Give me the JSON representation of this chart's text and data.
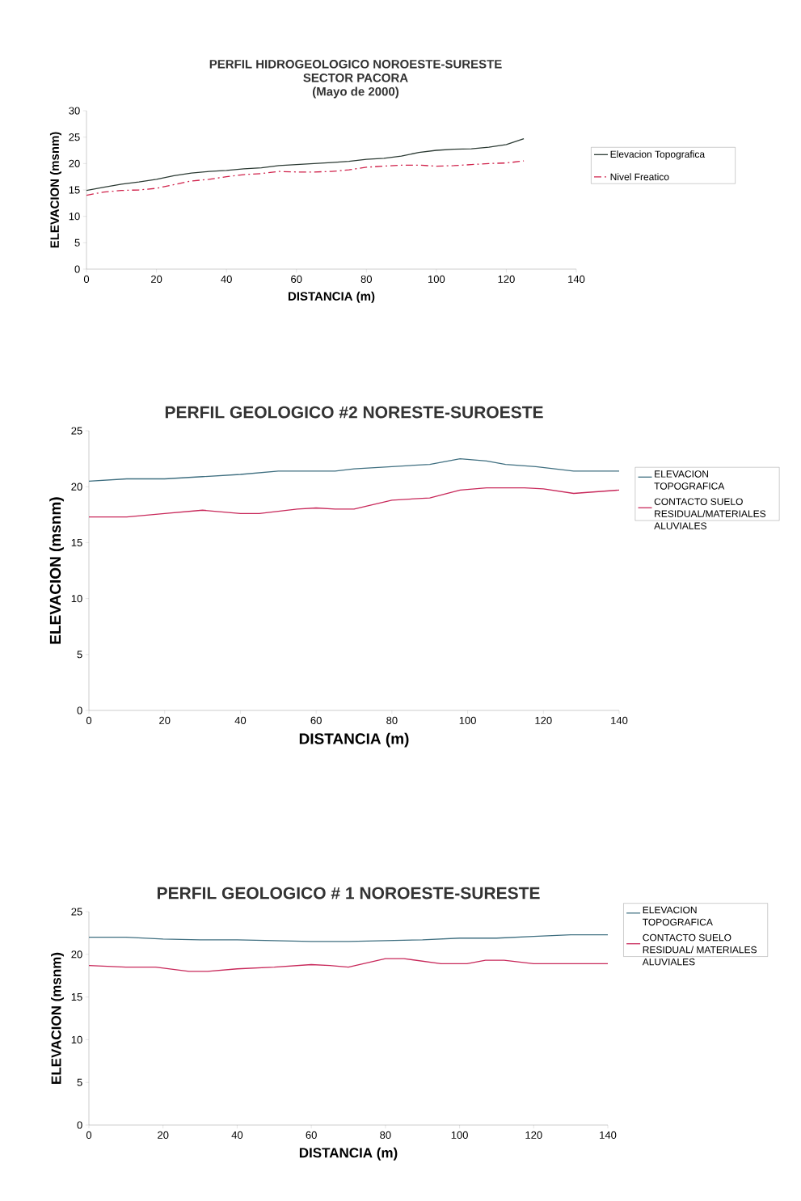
{
  "chart_data": [
    {
      "type": "line",
      "title": "PERFIL HIDROGEOLOGICO NOROESTE-SURESTE",
      "subtitle": "SECTOR PACORA",
      "annotations": [
        "(Mayo de 2000)"
      ],
      "xlabel": "DISTANCIA (m)",
      "ylabel": "ELEVACION (msnm)",
      "xlim": [
        0,
        140
      ],
      "xticks": [
        0,
        20,
        40,
        60,
        80,
        100,
        120,
        140
      ],
      "ylim": [
        0,
        30
      ],
      "yticks": [
        0,
        5,
        10,
        15,
        20,
        25,
        30
      ],
      "legend": "right",
      "marker": "none",
      "series": [
        {
          "name": "Elevacion Topografica",
          "color": "#2b3a33",
          "line_style": "solid",
          "x": [
            0,
            5,
            10,
            15,
            20,
            25,
            30,
            35,
            40,
            45,
            50,
            55,
            60,
            65,
            70,
            75,
            80,
            85,
            90,
            95,
            100,
            105,
            110,
            115,
            120,
            125
          ],
          "values": [
            14.9,
            15.5,
            16.1,
            16.5,
            17.0,
            17.7,
            18.2,
            18.5,
            18.7,
            19.0,
            19.2,
            19.6,
            19.8,
            20.0,
            20.2,
            20.4,
            20.8,
            21.0,
            21.4,
            22.1,
            22.5,
            22.7,
            22.8,
            23.1,
            23.6,
            24.7
          ]
        },
        {
          "name": "Nivel Freatico",
          "color": "#d0214a",
          "line_style": "dashed",
          "x": [
            0,
            5,
            10,
            15,
            20,
            25,
            30,
            35,
            40,
            45,
            50,
            55,
            60,
            65,
            70,
            75,
            80,
            85,
            90,
            95,
            100,
            105,
            110,
            115,
            120,
            125
          ],
          "values": [
            14.0,
            14.6,
            14.9,
            15.0,
            15.3,
            16.0,
            16.7,
            17.0,
            17.5,
            17.9,
            18.1,
            18.5,
            18.4,
            18.4,
            18.5,
            18.8,
            19.3,
            19.5,
            19.7,
            19.7,
            19.5,
            19.6,
            19.8,
            20.0,
            20.1,
            20.5
          ]
        }
      ]
    },
    {
      "type": "line",
      "title": "PERFIL GEOLOGICO #2  NORESTE-SUROESTE",
      "xlabel": "DISTANCIA (m)",
      "ylabel": "ELEVACION (msnm)",
      "xlim": [
        0,
        140
      ],
      "xticks": [
        0,
        20,
        40,
        60,
        80,
        100,
        120,
        140
      ],
      "ylim": [
        0,
        25
      ],
      "yticks": [
        0,
        5,
        10,
        15,
        20,
        25
      ],
      "legend": "right",
      "marker": "none",
      "series": [
        {
          "name": "ELEVACION TOPOGRAFICA",
          "color": "#3f6f80",
          "line_style": "solid",
          "x": [
            0,
            10,
            20,
            30,
            40,
            50,
            60,
            65,
            70,
            80,
            90,
            98,
            105,
            110,
            118,
            128,
            140
          ],
          "values": [
            20.5,
            20.7,
            20.7,
            20.9,
            21.1,
            21.4,
            21.4,
            21.4,
            21.6,
            21.8,
            22.0,
            22.5,
            22.3,
            22.0,
            21.8,
            21.4,
            21.4
          ]
        },
        {
          "name": "CONTACTO SUELO RESIDUAL/MATERIALES ALUVIALES",
          "color": "#c8285a",
          "line_style": "solid",
          "x": [
            0,
            10,
            20,
            30,
            40,
            45,
            50,
            55,
            60,
            65,
            70,
            80,
            90,
            98,
            105,
            115,
            120,
            128,
            140
          ],
          "values": [
            17.3,
            17.3,
            17.6,
            17.9,
            17.6,
            17.6,
            17.8,
            18.0,
            18.1,
            18.0,
            18.0,
            18.8,
            19.0,
            19.7,
            19.9,
            19.9,
            19.8,
            19.4,
            19.7
          ]
        }
      ]
    },
    {
      "type": "line",
      "title": "PERFIL GEOLOGICO # 1 NOROESTE-SURESTE",
      "xlabel": "DISTANCIA (m)",
      "ylabel": "ELEVACION (msnm)",
      "xlim": [
        0,
        140
      ],
      "xticks": [
        0,
        20,
        40,
        60,
        80,
        100,
        120,
        140
      ],
      "ylim": [
        0,
        25
      ],
      "yticks": [
        0,
        5,
        10,
        15,
        20,
        25
      ],
      "legend": "right",
      "marker": "none",
      "series": [
        {
          "name": "ELEVACION TOPOGRAFICA",
          "color": "#3f6f80",
          "line_style": "solid",
          "x": [
            0,
            10,
            20,
            30,
            40,
            50,
            60,
            70,
            80,
            90,
            100,
            110,
            120,
            130,
            140
          ],
          "values": [
            22.0,
            22.0,
            21.8,
            21.7,
            21.7,
            21.6,
            21.5,
            21.5,
            21.6,
            21.7,
            21.9,
            21.9,
            22.1,
            22.3,
            22.3
          ]
        },
        {
          "name": "CONTACTO SUELO RESIDUAL/ MATERIALES ALUVIALES",
          "color": "#c8285a",
          "line_style": "solid",
          "x": [
            0,
            10,
            18,
            27,
            32,
            40,
            50,
            60,
            65,
            70,
            75,
            80,
            85,
            95,
            102,
            107,
            112,
            120,
            140
          ],
          "values": [
            18.7,
            18.5,
            18.5,
            18.0,
            18.0,
            18.3,
            18.5,
            18.8,
            18.7,
            18.5,
            19.0,
            19.5,
            19.5,
            18.9,
            18.9,
            19.3,
            19.3,
            18.9,
            18.9
          ]
        }
      ]
    }
  ]
}
